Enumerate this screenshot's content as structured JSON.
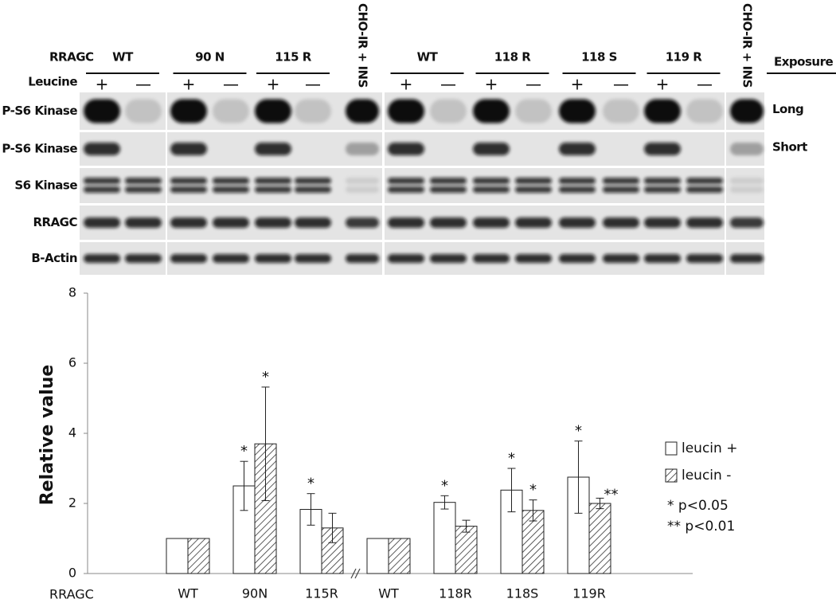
{
  "blot": {
    "rragc_label": "RRAGC",
    "leucine_label": "Leucine",
    "exposure_label": "Exposure",
    "groups": [
      {
        "label": "WT",
        "lanes": [
          "+",
          "—"
        ]
      },
      {
        "label": "90 N",
        "lanes": [
          "+",
          "—"
        ]
      },
      {
        "label": "115 R",
        "lanes": [
          "+",
          "—"
        ]
      },
      {
        "label": "CHO-IR + INS",
        "lanes": []
      },
      {
        "label": "WT",
        "lanes": [
          "+",
          "—"
        ]
      },
      {
        "label": "118 R",
        "lanes": [
          "+",
          "—"
        ]
      },
      {
        "label": "118 S",
        "lanes": [
          "+",
          "—"
        ]
      },
      {
        "label": "119 R",
        "lanes": [
          "+",
          "—"
        ]
      },
      {
        "label": "CHO-IR + INS",
        "lanes": []
      }
    ],
    "rows": [
      {
        "label": "P-S6 Kinase",
        "exposure": "Long"
      },
      {
        "label": "P-S6 Kinase",
        "exposure": "Short"
      },
      {
        "label": "S6 Kinase"
      },
      {
        "label": "RRAGC"
      },
      {
        "label": "B-Actin"
      }
    ]
  },
  "chart_data": {
    "type": "bar",
    "ylabel": "Relative value",
    "xlabel": "RRAGC",
    "categories": [
      "WT",
      "90N",
      "115R",
      "WT",
      "118R",
      "118S",
      "119R"
    ],
    "series": [
      {
        "name": "leucin +",
        "color": "#ffffff",
        "hatch": false,
        "values": [
          1,
          2.5,
          1.83,
          1,
          2.03,
          2.38,
          2.75
        ],
        "errors": [
          null,
          0.7,
          0.45,
          null,
          0.19,
          0.62,
          1.03
        ],
        "annotations": [
          null,
          "*",
          "*",
          null,
          "*",
          "*",
          "*"
        ]
      },
      {
        "name": "leucin -",
        "color": "#ffffff",
        "hatch": true,
        "values": [
          1,
          3.7,
          1.3,
          1,
          1.35,
          1.8,
          2.0
        ],
        "errors": [
          null,
          1.62,
          0.42,
          null,
          0.17,
          0.3,
          0.15
        ],
        "annotations": [
          null,
          "*",
          null,
          null,
          null,
          "*",
          "**"
        ]
      }
    ],
    "notes": [
      "* p<0.05",
      "** p<0.01"
    ],
    "ylim": [
      0,
      8
    ],
    "yticks": [
      0,
      2,
      4,
      6,
      8
    ],
    "grid": false
  }
}
